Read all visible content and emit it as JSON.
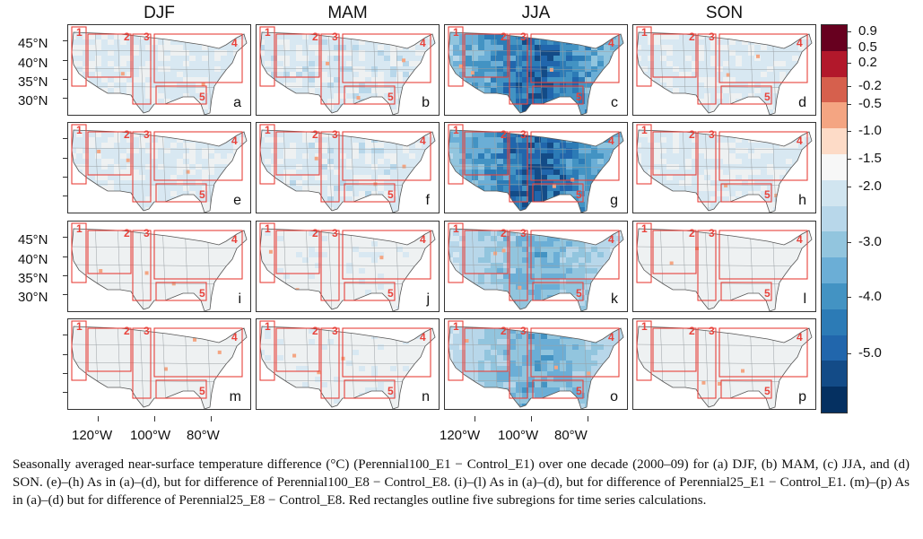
{
  "figure": {
    "column_titles": [
      "DJF",
      "MAM",
      "JJA",
      "SON"
    ],
    "panel_labels": [
      "a",
      "b",
      "c",
      "d",
      "e",
      "f",
      "g",
      "h",
      "i",
      "j",
      "k",
      "l",
      "m",
      "n",
      "o",
      "p"
    ],
    "subregion_numbers": [
      "1",
      "2",
      "3",
      "4",
      "5"
    ],
    "lat_labels": [
      "45°N",
      "40°N",
      "35°N",
      "30°N"
    ],
    "lon_labels": [
      "120°W",
      "100°W",
      "80°W"
    ],
    "colorbar": {
      "labels": [
        "0.9",
        "0.5",
        "0.2",
        "-0.2",
        "-0.5",
        "-1.0",
        "-1.5",
        "-2.0",
        "-3.0",
        "-4.0",
        "-5.0"
      ],
      "colors": [
        "#67001f",
        "#b2182b",
        "#d6604d",
        "#f4a582",
        "#fddbc7",
        "#f7f7f7",
        "#d1e5f0",
        "#b8d7ea",
        "#92c5de",
        "#6baed6",
        "#4393c3",
        "#2c7bb6",
        "#2166ac",
        "#134b87",
        "#053061"
      ]
    },
    "panel_intensity": [
      0.15,
      0.18,
      0.85,
      0.16,
      0.14,
      0.17,
      0.88,
      0.15,
      0.04,
      0.06,
      0.45,
      0.05,
      0.05,
      0.06,
      0.48,
      0.05
    ],
    "region_color": "#e8423b",
    "land_color": "#eef1f2"
  },
  "caption": "Seasonally averaged near-surface temperature difference (°C) (Perennial100_E1 − Control_E1) over one decade (2000–09) for (a) DJF, (b) MAM, (c) JJA, and (d) SON. (e)–(h) As in (a)–(d), but for difference of Perennial100_E8 − Control_E8. (i)–(l) As in (a)–(d), but for difference of Perennial25_E1 − Control_E1. (m)–(p) As in (a)–(d) but for difference of Perennial25_E8 − Control_E8. Red rectangles outline five subregions for time series calculations."
}
